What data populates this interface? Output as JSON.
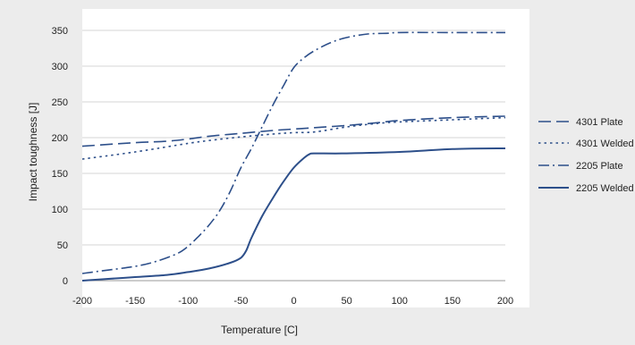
{
  "chart_data": {
    "type": "line",
    "xlabel": "Temperature [C]",
    "ylabel": "Impact toughness [J]",
    "xlim": [
      -200,
      200
    ],
    "ylim": [
      0,
      350
    ],
    "xticks": [
      -200,
      -150,
      -100,
      -50,
      0,
      50,
      100,
      150,
      200
    ],
    "yticks": [
      0,
      50,
      100,
      150,
      200,
      250,
      300,
      350
    ],
    "grid": "horizontal",
    "legend_position": "right",
    "series": [
      {
        "name": "4301 Plate",
        "style": "dashed",
        "color": "#2d4f8a",
        "x": [
          -200,
          -150,
          -120,
          -100,
          -80,
          -50,
          -20,
          0,
          20,
          50,
          80,
          100,
          150,
          200
        ],
        "y": [
          188,
          193,
          195,
          198,
          202,
          206,
          210,
          212,
          214,
          217,
          221,
          224,
          228,
          230
        ]
      },
      {
        "name": "4301 Welded",
        "style": "dotted",
        "color": "#2d4f8a",
        "x": [
          -200,
          -150,
          -100,
          -80,
          -50,
          -20,
          0,
          20,
          50,
          80,
          100,
          150,
          200
        ],
        "y": [
          170,
          180,
          192,
          196,
          201,
          205,
          207,
          208,
          215,
          220,
          222,
          225,
          228
        ]
      },
      {
        "name": "2205 Plate",
        "style": "dashdot",
        "color": "#2d4f8a",
        "x": [
          -200,
          -180,
          -150,
          -130,
          -110,
          -100,
          -90,
          -80,
          -70,
          -60,
          -50,
          -40,
          -30,
          -20,
          -10,
          0,
          10,
          20,
          35,
          50,
          70,
          90,
          100,
          150,
          200
        ],
        "y": [
          10,
          14,
          20,
          27,
          38,
          48,
          62,
          78,
          98,
          125,
          158,
          185,
          215,
          245,
          272,
          298,
          312,
          322,
          333,
          340,
          345,
          346,
          347,
          347,
          347
        ]
      },
      {
        "name": "2205 Welded",
        "style": "solid",
        "color": "#2d4f8a",
        "x": [
          -200,
          -180,
          -150,
          -120,
          -100,
          -80,
          -60,
          -50,
          -45,
          -40,
          -30,
          -20,
          -10,
          0,
          10,
          15,
          20,
          50,
          100,
          150,
          200
        ],
        "y": [
          0,
          2,
          5,
          8,
          12,
          17,
          25,
          32,
          42,
          60,
          90,
          115,
          138,
          158,
          172,
          177,
          178,
          178,
          180,
          184,
          185
        ]
      }
    ]
  }
}
